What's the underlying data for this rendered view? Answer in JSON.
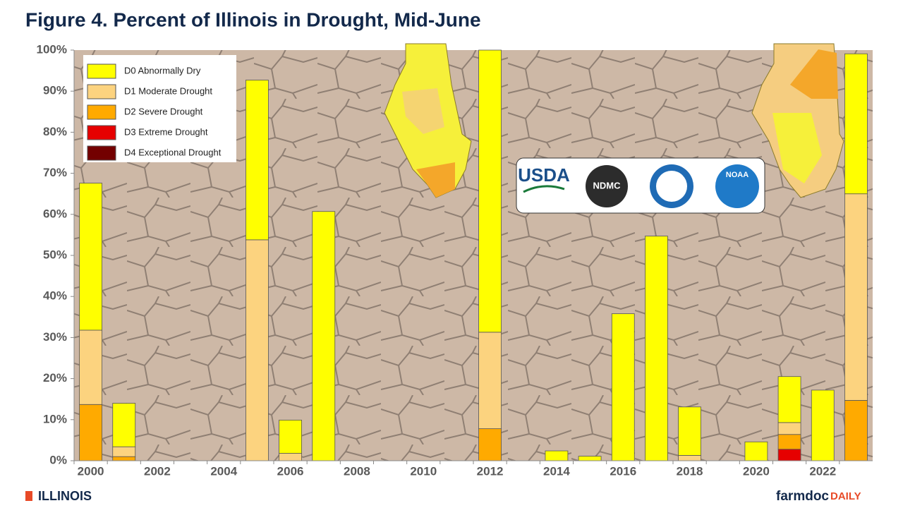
{
  "chart_data": {
    "type": "stacked_bar",
    "title": "Figure 4. Percent of Illinois in Drought, Mid-June",
    "categories": [
      "2000",
      null,
      "2002",
      null,
      "2004",
      null,
      "2006",
      null,
      "2008",
      null,
      "2010",
      null,
      "2012",
      null,
      "2014",
      null,
      "2016",
      null,
      "2018",
      null,
      "2020",
      null,
      "2022",
      null
    ],
    "series": [
      {
        "name": "D0 Abnormally Dry",
        "color": "#ffff00",
        "values": [
          35.8,
          10.6,
          0,
          0,
          0,
          38.9,
          8.1,
          60.7,
          0,
          0,
          0,
          0,
          68.7,
          0,
          2.4,
          1.1,
          35.8,
          54.7,
          11.8,
          0,
          4.6,
          11.2,
          17.2,
          34.1
        ]
      },
      {
        "name": "D1 Moderate Drought",
        "color": "#fcd37f",
        "values": [
          18.1,
          2.4,
          0,
          0,
          0,
          53.8,
          1.8,
          0,
          0,
          0,
          0,
          0,
          23.5,
          0,
          0,
          0,
          0,
          0,
          1.3,
          0,
          0,
          2.9,
          0,
          50.3
        ]
      },
      {
        "name": "D2 Severe Drought",
        "color": "#ffaa00",
        "values": [
          13.7,
          1.0,
          0,
          0,
          0,
          0,
          0,
          0,
          0,
          0,
          0,
          0,
          7.8,
          0,
          0,
          0,
          0,
          0,
          0,
          0,
          0,
          3.6,
          0,
          14.7
        ]
      },
      {
        "name": "D3 Extreme Drought",
        "color": "#e60000",
        "values": [
          0,
          0,
          0,
          0,
          0,
          0,
          0,
          0,
          0,
          0,
          0,
          0,
          0,
          0,
          0,
          0,
          0,
          0,
          0,
          0,
          0,
          2.8,
          0,
          0
        ]
      },
      {
        "name": "D4 Exceptional Drought",
        "color": "#730000",
        "values": [
          0,
          0,
          0,
          0,
          0,
          0,
          0,
          0,
          0,
          0,
          0,
          0,
          0,
          0,
          0,
          0,
          0,
          0,
          0,
          0,
          0,
          0,
          0,
          0
        ]
      }
    ],
    "ylim": [
      0,
      100
    ],
    "yticks": [
      {
        "value": 0,
        "label": "0%"
      },
      {
        "value": 10,
        "label": "10%"
      },
      {
        "value": 20,
        "label": "20%"
      },
      {
        "value": 30,
        "label": "30%"
      },
      {
        "value": 40,
        "label": "40%"
      },
      {
        "value": 50,
        "label": "50%"
      },
      {
        "value": 60,
        "label": "60%"
      },
      {
        "value": 70,
        "label": "70%"
      },
      {
        "value": 80,
        "label": "80%"
      },
      {
        "value": 90,
        "label": "90%"
      },
      {
        "value": 100,
        "label": "100%"
      }
    ],
    "legend": "upper left",
    "logos": [
      "USDA",
      "NDMC",
      "NOAA"
    ]
  },
  "footer": {
    "left": "ILLINOIS",
    "right_a": "farmdoc",
    "right_b": "DAILY"
  }
}
